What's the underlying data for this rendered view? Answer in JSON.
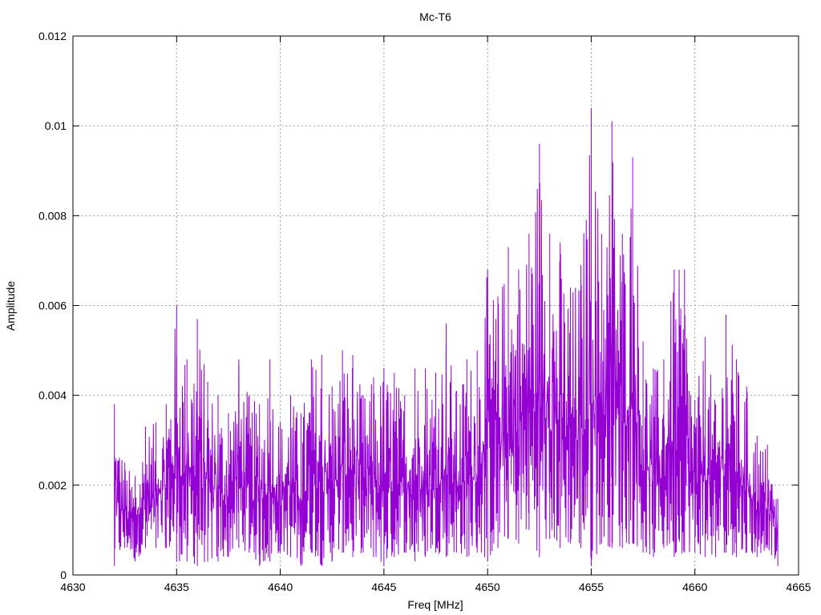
{
  "chart_data": {
    "type": "line",
    "title": "Mc-T6",
    "xlabel": "Freq [MHz]",
    "ylabel": "Amplitude",
    "xlim": [
      4630,
      4665
    ],
    "ylim": [
      0,
      0.012
    ],
    "x_ticks": [
      4630,
      4635,
      4640,
      4645,
      4650,
      4655,
      4660,
      4665
    ],
    "x_tick_labels": [
      "4630",
      "4635",
      "4640",
      "4645",
      "4650",
      "4655",
      "4660",
      "4665"
    ],
    "y_ticks": [
      0,
      0.002,
      0.004,
      0.006,
      0.008,
      0.01,
      0.012
    ],
    "y_tick_labels": [
      "0",
      "0.002",
      "0.004",
      "0.006",
      "0.008",
      "0.01",
      "0.012"
    ],
    "grid": true,
    "line_color": "#9400d3",
    "series": [
      {
        "x": [
          4632.0,
          4632.5,
          4633.0,
          4633.5,
          4634.0,
          4634.5,
          4635.0,
          4635.5,
          4636.0,
          4636.5,
          4637.0,
          4637.5,
          4638.0,
          4638.5,
          4639.0,
          4639.5,
          4640.0,
          4640.5,
          4641.0,
          4641.5,
          4642.0,
          4642.5,
          4643.0,
          4643.5,
          4644.0,
          4644.5,
          4645.0,
          4645.5,
          4646.0,
          4646.5,
          4647.0,
          4647.5,
          4648.0,
          4648.5,
          4649.0,
          4649.5,
          4650.0,
          4650.5,
          4651.0,
          4651.5,
          4652.0,
          4652.5,
          4653.0,
          4653.5,
          4654.0,
          4654.5,
          4655.0,
          4655.5,
          4656.0,
          4656.5,
          4657.0,
          4657.5,
          4658.0,
          4658.5,
          4659.0,
          4659.5,
          4660.0,
          4660.5,
          4661.0,
          4661.5,
          4662.0,
          4662.5,
          4663.0,
          4663.5,
          4664.0
        ],
        "y_max": [
          0.0038,
          0.0025,
          0.0022,
          0.0033,
          0.0034,
          0.0038,
          0.006,
          0.0048,
          0.0057,
          0.0043,
          0.004,
          0.0036,
          0.0048,
          0.004,
          0.0038,
          0.0048,
          0.0034,
          0.004,
          0.0036,
          0.0048,
          0.0049,
          0.0042,
          0.005,
          0.0049,
          0.004,
          0.0044,
          0.0046,
          0.0045,
          0.004,
          0.0046,
          0.0046,
          0.0045,
          0.0056,
          0.0041,
          0.0048,
          0.005,
          0.0068,
          0.0062,
          0.0073,
          0.0068,
          0.0076,
          0.0096,
          0.0076,
          0.0074,
          0.0064,
          0.0069,
          0.0104,
          0.0076,
          0.0101,
          0.0076,
          0.0093,
          0.0052,
          0.0046,
          0.0048,
          0.0068,
          0.0068,
          0.0039,
          0.0053,
          0.0038,
          0.0058,
          0.0048,
          0.0042,
          0.0031,
          0.0029,
          0.0017
        ],
        "y_min": [
          0.0002,
          0.0006,
          0.0003,
          0.0006,
          0.0006,
          0.0006,
          0.0003,
          0.0003,
          0.0002,
          0.0003,
          0.0003,
          0.0004,
          0.0006,
          0.0005,
          0.0002,
          0.0003,
          0.0005,
          0.0004,
          0.0002,
          0.0005,
          0.0002,
          0.0003,
          0.0005,
          0.0004,
          0.0005,
          0.0004,
          0.0002,
          0.0004,
          0.0005,
          0.0003,
          0.0004,
          0.0005,
          0.0004,
          0.0005,
          0.0004,
          0.0005,
          0.0003,
          0.0006,
          0.0008,
          0.0007,
          0.001,
          0.0004,
          0.0008,
          0.0006,
          0.0007,
          0.0006,
          0.0002,
          0.0007,
          0.0006,
          0.0006,
          0.0007,
          0.0005,
          0.0004,
          0.0006,
          0.0004,
          0.0005,
          0.0005,
          0.0004,
          0.0004,
          0.0005,
          0.0004,
          0.0005,
          0.0004,
          0.0006,
          0.0002
        ]
      }
    ]
  }
}
